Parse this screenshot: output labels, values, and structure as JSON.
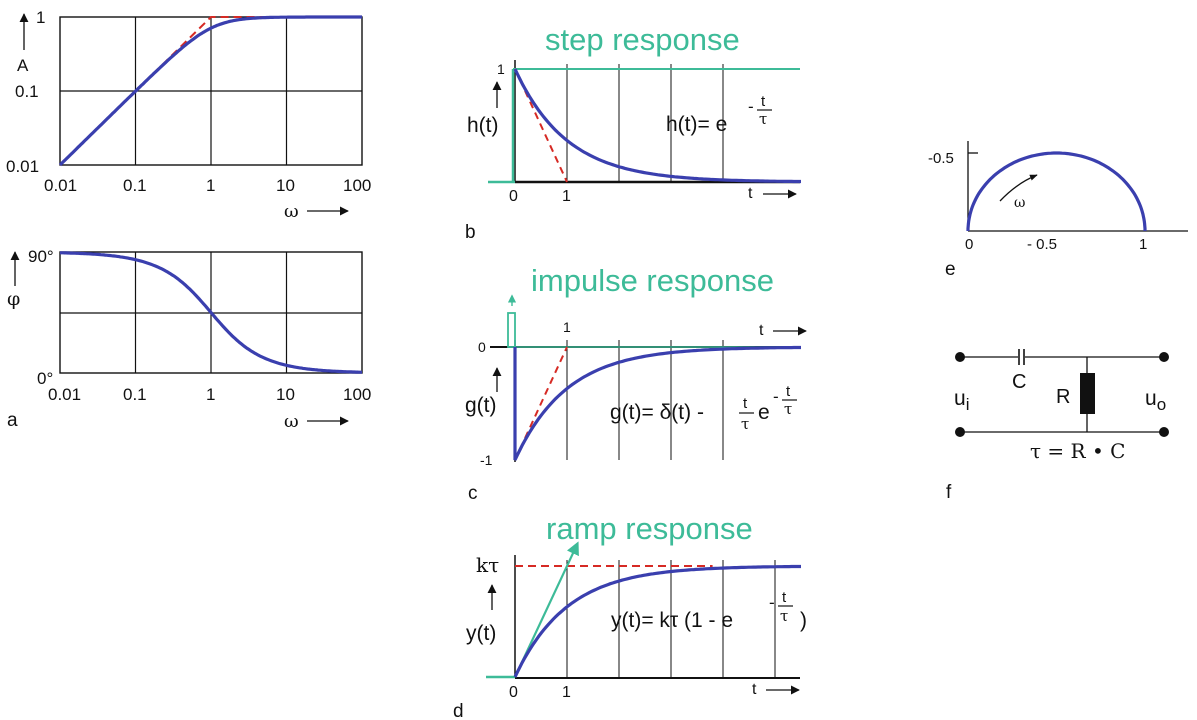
{
  "colors": {
    "curve": "#3a3fae",
    "asymptote": "#d62a24",
    "teal": "#3dbb98",
    "axis": "#111111"
  },
  "panel_a": {
    "letter": "a",
    "amp": {
      "ylabel": "A",
      "yticks": [
        "1",
        "0.1",
        "0.01"
      ],
      "xticks": [
        "0.01",
        "0.1",
        "1",
        "10",
        "100"
      ],
      "xlabel": "ω"
    },
    "phase": {
      "ylabel": "φ",
      "yticks": [
        "90°",
        "0°"
      ],
      "xticks": [
        "0.01",
        "0.1",
        "1",
        "10",
        "100"
      ],
      "xlabel": "ω"
    }
  },
  "panel_b": {
    "letter": "b",
    "title": "step response",
    "ylabel": "h(t)",
    "ytick": "1",
    "xticks": [
      "0",
      "1"
    ],
    "xlabel": "t",
    "eq_lhs": "h(t)= e",
    "eq_minus": "-",
    "eq_num": "t",
    "eq_den": "τ"
  },
  "panel_c": {
    "letter": "c",
    "title": "impulse response",
    "ylabel": "g(t)",
    "ytick_zero": "0",
    "ytick_neg": "-1",
    "xtick": "1",
    "xlabel": "t",
    "eq_lhs": "g(t)= δ(t) -",
    "eq_num1": "t",
    "eq_den1": "τ",
    "eq_e": "e",
    "eq_minus": "-",
    "eq_num2": "t",
    "eq_den2": "τ"
  },
  "panel_d": {
    "letter": "d",
    "title": "ramp response",
    "ylabel": "y(t)",
    "ytick": "kτ",
    "xticks": [
      "0",
      "1"
    ],
    "xlabel": "t",
    "eq_lhs": "y(t)= kτ (1 - e",
    "eq_minus": "-",
    "eq_num": "t",
    "eq_den": "τ",
    "eq_close": ")"
  },
  "panel_e": {
    "letter": "e",
    "ytick": "-0.5",
    "xticks": [
      "0",
      "- 0.5",
      "1"
    ],
    "arrow_label": "ω"
  },
  "panel_f": {
    "letter": "f",
    "cap_label": "C",
    "res_label": "R",
    "in_label": "u",
    "in_sub": "i",
    "out_label": "u",
    "out_sub": "o",
    "tau_eq": "τ = R • C"
  },
  "chart_data": [
    {
      "type": "line",
      "title": "",
      "xlabel": "ω",
      "ylabel": "A",
      "x_scale": "log",
      "y_scale": "log",
      "xlim": [
        0.01,
        100
      ],
      "ylim": [
        0.01,
        1
      ],
      "grid": true,
      "series": [
        {
          "x": [
            0.01,
            0.03,
            0.1,
            0.3,
            0.5,
            1,
            2,
            5,
            10,
            100
          ],
          "y": [
            0.01,
            0.03,
            0.1,
            0.287,
            0.447,
            0.707,
            0.894,
            0.981,
            0.995,
            1.0
          ]
        },
        {
          "x": [
            0.01,
            1,
            100
          ],
          "y": [
            0.01,
            1,
            1
          ]
        }
      ]
    },
    {
      "type": "line",
      "title": "",
      "xlabel": "ω",
      "ylabel": "φ",
      "x_scale": "log",
      "xlim": [
        0.01,
        100
      ],
      "ylim": [
        0,
        90
      ],
      "grid": true,
      "series": [
        {
          "x": [
            0.01,
            0.03,
            0.1,
            0.3,
            1,
            3,
            10,
            30,
            100
          ],
          "y": [
            89.4,
            88.3,
            84.3,
            73.3,
            45,
            18.4,
            5.7,
            1.9,
            0.6
          ]
        }
      ]
    },
    {
      "type": "line",
      "title": "step response",
      "xlabel": "t",
      "ylabel": "h(t)",
      "xlim": [
        0,
        5.5
      ],
      "ylim": [
        0,
        1
      ],
      "grid": true,
      "series": [
        {
          "x": [
            0,
            0.5,
            1,
            1.5,
            2,
            3,
            4,
            5.5
          ],
          "y": [
            1,
            0.607,
            0.368,
            0.223,
            0.135,
            0.05,
            0.018,
            0.004
          ]
        },
        {
          "x": [
            0,
            1
          ],
          "y": [
            1,
            0
          ]
        },
        {
          "x": [
            0,
            5.5
          ],
          "y": [
            1,
            1
          ]
        }
      ]
    },
    {
      "type": "line",
      "title": "impulse response",
      "xlabel": "t",
      "ylabel": "g(t)",
      "xlim": [
        0,
        5.5
      ],
      "ylim": [
        -1,
        0
      ],
      "grid": true,
      "series": [
        {
          "x": [
            0,
            0.5,
            1,
            1.5,
            2,
            3,
            4,
            5.5
          ],
          "y": [
            -1,
            -0.607,
            -0.368,
            -0.223,
            -0.135,
            -0.05,
            -0.018,
            -0.004
          ]
        },
        {
          "x": [
            0,
            1
          ],
          "y": [
            -1,
            0
          ]
        }
      ]
    },
    {
      "type": "line",
      "title": "ramp response",
      "xlabel": "t",
      "ylabel": "y(t)",
      "xlim": [
        0,
        5.5
      ],
      "ylim": [
        0,
        1
      ],
      "grid": true,
      "series": [
        {
          "x": [
            0,
            0.5,
            1,
            1.5,
            2,
            3,
            4,
            5.5
          ],
          "y": [
            0,
            0.393,
            0.632,
            0.777,
            0.865,
            0.95,
            0.982,
            0.996
          ]
        },
        {
          "x": [
            0,
            3.8
          ],
          "y": [
            1,
            1
          ]
        },
        {
          "x": [
            0,
            1.2
          ],
          "y": [
            0,
            1.2
          ]
        }
      ]
    },
    {
      "type": "line",
      "title": "",
      "xlim": [
        0,
        1.2
      ],
      "ylim": [
        -0.6,
        0
      ],
      "series": [
        {
          "x": [
            0,
            0.1,
            0.25,
            0.5,
            0.75,
            0.9,
            1
          ],
          "y": [
            0,
            -0.3,
            -0.433,
            -0.5,
            -0.433,
            -0.3,
            0
          ]
        }
      ]
    }
  ]
}
